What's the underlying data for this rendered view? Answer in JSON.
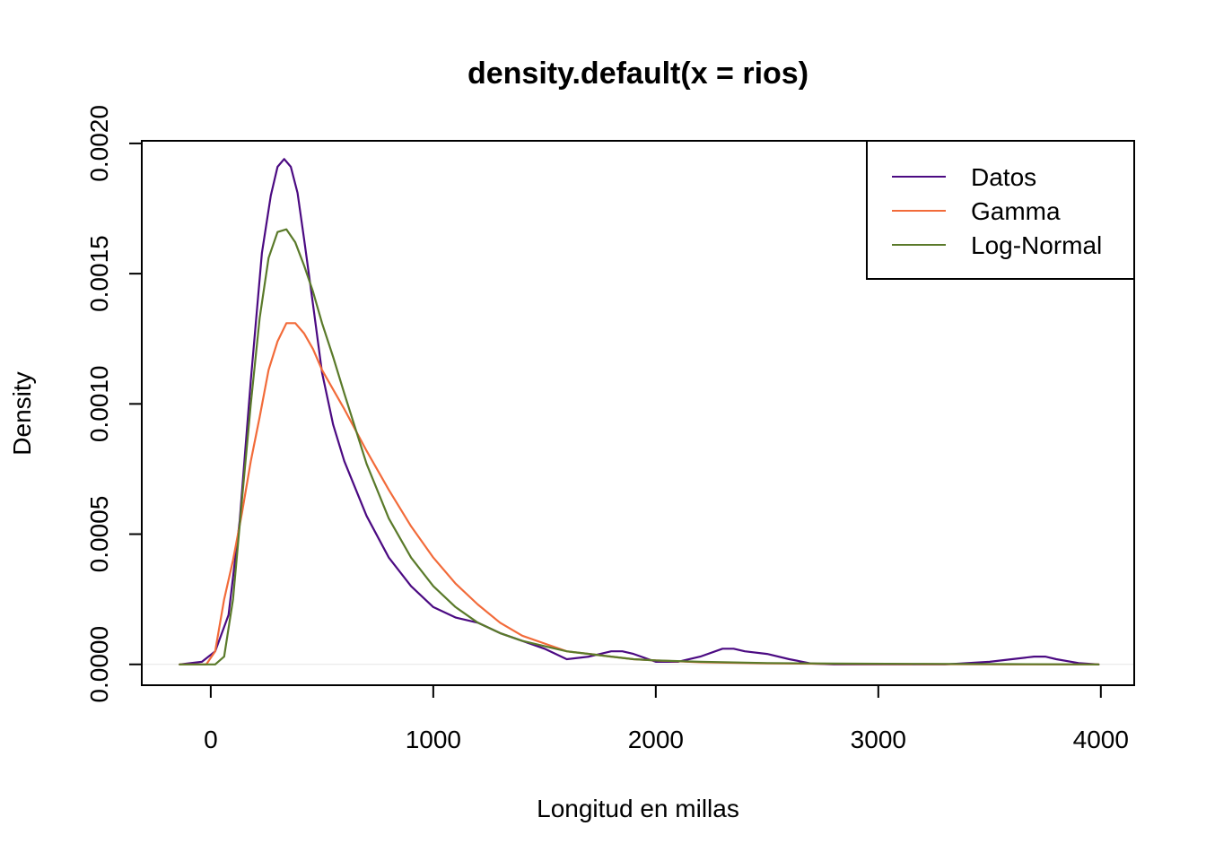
{
  "chart_data": {
    "type": "line",
    "title": "density.default(x = rios)",
    "xlabel": "Longitud en millas",
    "ylabel": "Density",
    "xlim": [
      -310,
      4150
    ],
    "ylim": [
      -8e-05,
      0.00201
    ],
    "x_ticks": [
      0,
      1000,
      2000,
      3000,
      4000
    ],
    "x_tick_labels": [
      "0",
      "1000",
      "2000",
      "3000",
      "4000"
    ],
    "y_ticks": [
      0,
      0.0005,
      0.001,
      0.0015,
      0.002
    ],
    "y_tick_labels": [
      "0.0000",
      "0.0005",
      "0.0010",
      "0.0015",
      "0.0020"
    ],
    "legend_position": "top-right",
    "series": [
      {
        "name": "Datos",
        "color": "#4B0A82",
        "x": [
          -140,
          -40,
          20,
          80,
          130,
          180,
          230,
          270,
          300,
          330,
          360,
          390,
          420,
          460,
          500,
          550,
          600,
          700,
          800,
          900,
          1000,
          1100,
          1200,
          1300,
          1400,
          1500,
          1600,
          1700,
          1800,
          1850,
          1900,
          2000,
          2100,
          2200,
          2300,
          2350,
          2400,
          2500,
          2600,
          2700,
          2800,
          3000,
          3300,
          3500,
          3600,
          3700,
          3750,
          3800,
          3900,
          3990
        ],
        "y": [
          0,
          1e-05,
          5e-05,
          0.00019,
          0.00055,
          0.00109,
          0.00158,
          0.0018,
          0.00191,
          0.00194,
          0.00191,
          0.00181,
          0.00163,
          0.00138,
          0.00112,
          0.00092,
          0.00078,
          0.00057,
          0.00041,
          0.0003,
          0.00022,
          0.00018,
          0.00016,
          0.00012,
          9e-05,
          6e-05,
          2e-05,
          3e-05,
          5e-05,
          5e-05,
          4e-05,
          1e-05,
          1e-05,
          3e-05,
          6e-05,
          6e-05,
          5e-05,
          4e-05,
          2e-05,
          3e-06,
          0,
          0,
          0,
          1e-05,
          2e-05,
          3e-05,
          3e-05,
          2e-05,
          5e-06,
          0
        ]
      },
      {
        "name": "Gamma",
        "color": "#F26B3A",
        "x": [
          -140,
          -20,
          20,
          60,
          100,
          140,
          180,
          220,
          260,
          300,
          340,
          380,
          420,
          460,
          500,
          600,
          700,
          800,
          900,
          1000,
          1100,
          1200,
          1300,
          1400,
          1500,
          1600,
          1700,
          1800,
          1900,
          2000,
          2200,
          2500,
          2800,
          3200,
          3600,
          3990
        ],
        "y": [
          0,
          0,
          5e-05,
          0.00025,
          0.0004,
          0.00058,
          0.00078,
          0.00095,
          0.00113,
          0.00124,
          0.00131,
          0.00131,
          0.00127,
          0.00121,
          0.00113,
          0.00098,
          0.00082,
          0.00067,
          0.00053,
          0.00041,
          0.00031,
          0.00023,
          0.00016,
          0.00011,
          8e-05,
          5e-05,
          4e-05,
          3e-05,
          2e-05,
          1.5e-05,
          8e-06,
          4e-06,
          2e-06,
          1e-06,
          0,
          0
        ]
      },
      {
        "name": "Log-Normal",
        "color": "#5A7A2A",
        "x": [
          -140,
          20,
          60,
          100,
          140,
          180,
          220,
          260,
          300,
          340,
          380,
          420,
          460,
          500,
          550,
          600,
          700,
          800,
          900,
          1000,
          1100,
          1200,
          1300,
          1400,
          1500,
          1600,
          1700,
          1800,
          1900,
          2000,
          2200,
          2500,
          2800,
          3200,
          3600,
          3990
        ],
        "y": [
          0,
          0,
          3e-05,
          0.00025,
          0.00063,
          0.001,
          0.00133,
          0.00156,
          0.00166,
          0.00167,
          0.00162,
          0.00153,
          0.00143,
          0.00131,
          0.00118,
          0.00104,
          0.00077,
          0.00056,
          0.00041,
          0.0003,
          0.00022,
          0.00016,
          0.00012,
          9e-05,
          7e-05,
          5e-05,
          4e-05,
          3e-05,
          2e-05,
          1.5e-05,
          1e-05,
          5e-06,
          3e-06,
          2e-06,
          1e-06,
          0
        ]
      }
    ]
  }
}
